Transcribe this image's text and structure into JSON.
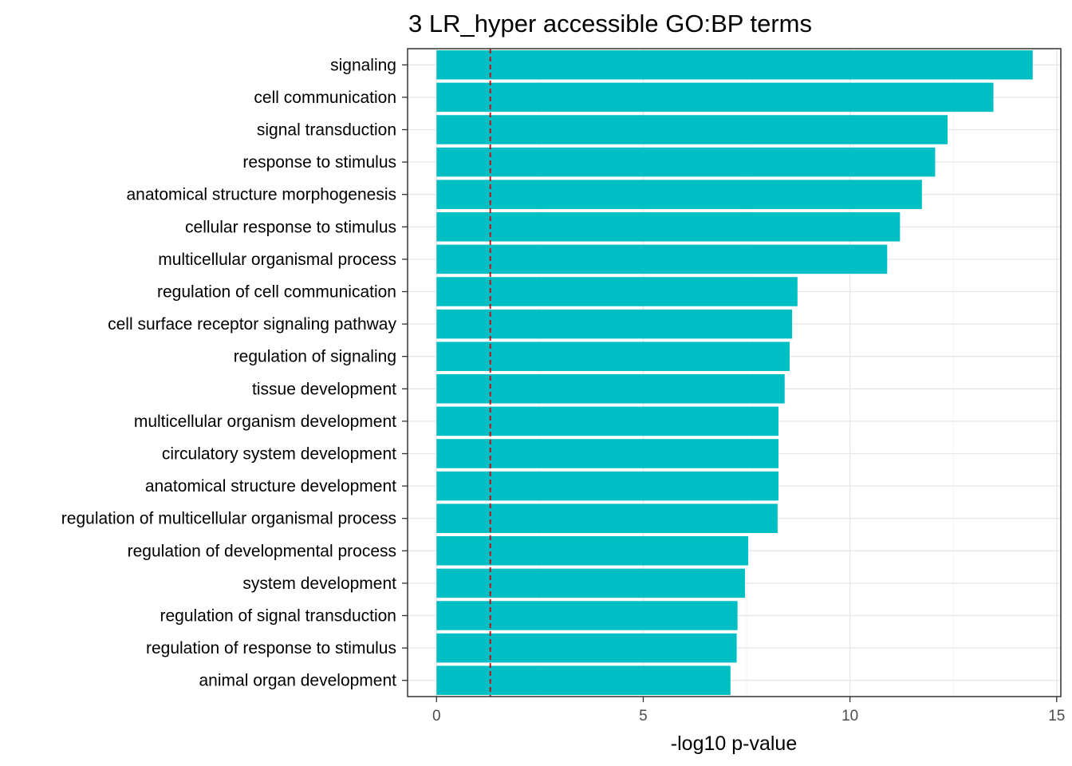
{
  "chart_data": {
    "type": "bar",
    "orientation": "horizontal",
    "title": "3 LR_hyper accessible GO:BP terms",
    "xlabel": "-log10 p-value",
    "ylabel": "",
    "xlim": [
      -0.7,
      15.1
    ],
    "xticks": [
      0,
      5,
      10,
      15
    ],
    "grid": true,
    "legend": "none",
    "bar_color": "#00BFC4",
    "threshold_line": {
      "value": 1.3,
      "color": "#CC0000",
      "style": "dashed"
    },
    "categories": [
      "signaling",
      "cell communication",
      "signal transduction",
      "response to stimulus",
      "anatomical structure morphogenesis",
      "cellular response to stimulus",
      "multicellular organismal process",
      "regulation of cell communication",
      "cell surface receptor signaling pathway",
      "regulation of signaling",
      "tissue development",
      "multicellular organism development",
      "circulatory system development",
      "anatomical structure development",
      "regulation of multicellular organismal process",
      "regulation of developmental process",
      "system development",
      "regulation of signal transduction",
      "regulation of response to stimulus",
      "animal organ development"
    ],
    "values": [
      14.42,
      13.47,
      12.36,
      12.06,
      11.74,
      11.21,
      10.9,
      8.73,
      8.6,
      8.54,
      8.42,
      8.27,
      8.27,
      8.27,
      8.25,
      7.54,
      7.46,
      7.28,
      7.26,
      7.11
    ]
  }
}
